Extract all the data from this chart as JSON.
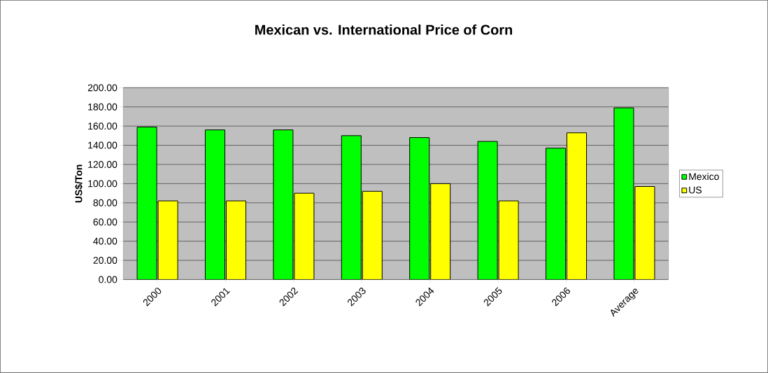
{
  "chart_data": {
    "type": "bar",
    "title": "Mexican vs. International Price of Corn",
    "ylabel": "US$/Ton",
    "categories": [
      "2000",
      "2001",
      "2002",
      "2003",
      "2004",
      "2005",
      "2006",
      "Average"
    ],
    "series": [
      {
        "name": "Mexico",
        "color": "#00ff00",
        "values": [
          159,
          156,
          156,
          150,
          148,
          144,
          137,
          179
        ]
      },
      {
        "name": "US",
        "color": "#ffff00",
        "values": [
          82,
          82,
          90,
          92,
          100,
          82,
          153,
          97
        ]
      }
    ],
    "ylim": [
      0,
      200
    ],
    "yticks": [
      {
        "value": 0,
        "label": "0.00"
      },
      {
        "value": 20,
        "label": "20.00"
      },
      {
        "value": 40,
        "label": "40.00"
      },
      {
        "value": 60,
        "label": "60.00"
      },
      {
        "value": 80,
        "label": "80.00"
      },
      {
        "value": 100,
        "label": "100.00"
      },
      {
        "value": 120,
        "label": "120.00"
      },
      {
        "value": 140,
        "label": "140.00"
      },
      {
        "value": 160,
        "label": "160.00"
      },
      {
        "value": 180,
        "label": "180.00"
      },
      {
        "value": 200,
        "label": "200.00"
      }
    ],
    "grid": "y",
    "legend": "right"
  }
}
